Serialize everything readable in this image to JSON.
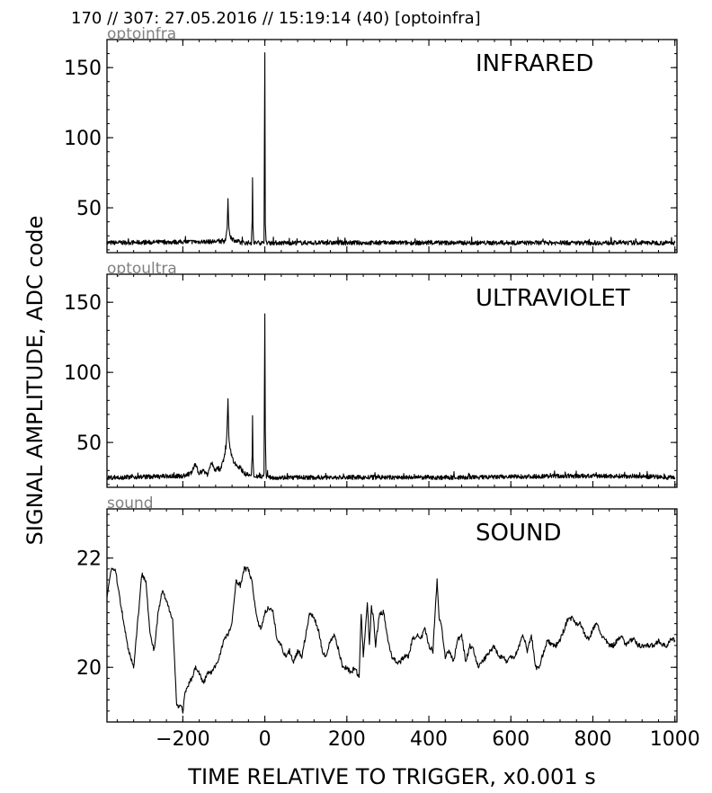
{
  "figure": {
    "header": "170 // 307:   27.05.2016 // 15:19:14 (40)  [optoinfra]",
    "ylabel": "SIGNAL AMPLITUDE,  ADC code",
    "xlabel": "TIME RELATIVE TO TRIGGER,   x0.001 s"
  },
  "chart_data": [
    {
      "type": "line",
      "subplot_label": "optoinfra",
      "title": "INFRARED",
      "xlim": [
        -385,
        1005
      ],
      "ylim": [
        18,
        170
      ],
      "yticks": [
        50,
        100,
        150
      ],
      "xticks": [
        -200,
        0,
        200,
        400,
        600,
        800,
        1000
      ],
      "show_xtick_labels": false,
      "baseline": 25,
      "series": [
        {
          "x": [
            -385,
            -100,
            -95,
            -92,
            -90,
            -88,
            -85,
            -80,
            -75,
            -70,
            -65,
            -60,
            -55,
            -50,
            -40,
            -33,
            -31,
            -30,
            -29,
            -27,
            -20,
            -5,
            -2,
            0,
            1,
            3,
            8,
            20,
            100,
            300,
            500,
            700,
            900,
            1000
          ],
          "y": [
            25,
            26,
            28,
            35,
            55,
            38,
            30,
            28,
            27,
            26,
            26,
            25,
            25,
            25,
            25,
            25,
            40,
            70,
            38,
            25,
            25,
            25,
            26,
            160,
            40,
            25,
            25,
            25,
            25,
            25,
            25,
            25,
            25,
            25
          ]
        }
      ]
    },
    {
      "type": "line",
      "subplot_label": "optoultra",
      "title": "ULTRAVIOLET",
      "xlim": [
        -385,
        1005
      ],
      "ylim": [
        18,
        170
      ],
      "yticks": [
        50,
        100,
        150
      ],
      "xticks": [
        -200,
        0,
        200,
        400,
        600,
        800,
        1000
      ],
      "show_xtick_labels": false,
      "baseline": 25,
      "series": [
        {
          "x": [
            -385,
            -200,
            -180,
            -170,
            -160,
            -150,
            -140,
            -130,
            -120,
            -115,
            -110,
            -105,
            -100,
            -95,
            -92,
            -90,
            -88,
            -85,
            -80,
            -75,
            -70,
            -65,
            -60,
            -55,
            -50,
            -45,
            -40,
            -33,
            -31,
            -30,
            -29,
            -27,
            -20,
            -5,
            -2,
            0,
            1,
            3,
            10,
            100,
            300,
            500,
            700,
            900,
            1000
          ],
          "y": [
            25,
            26,
            28,
            34,
            28,
            30,
            27,
            36,
            29,
            32,
            30,
            34,
            38,
            45,
            60,
            82,
            55,
            45,
            40,
            36,
            34,
            33,
            32,
            30,
            28,
            27,
            27,
            26,
            40,
            68,
            38,
            26,
            26,
            26,
            27,
            142,
            60,
            26,
            25,
            25,
            25,
            25,
            26,
            26,
            25
          ]
        }
      ]
    },
    {
      "type": "line",
      "subplot_label": "sound",
      "title": "SOUND",
      "xlim": [
        -385,
        1005
      ],
      "ylim": [
        19.0,
        22.9
      ],
      "yticks": [
        20,
        22
      ],
      "xticks": [
        -200,
        0,
        200,
        400,
        600,
        800,
        1000
      ],
      "xticklabels": [
        "−200",
        "0",
        "200",
        "400",
        "600",
        "800",
        "1000"
      ],
      "show_xtick_labels": true,
      "series": [
        {
          "x": [
            -385,
            -375,
            -365,
            -350,
            -335,
            -320,
            -300,
            -290,
            -280,
            -270,
            -260,
            -250,
            -240,
            -225,
            -215,
            -205,
            -200,
            -195,
            -185,
            -178,
            -170,
            -160,
            -150,
            -140,
            -130,
            -115,
            -100,
            -90,
            -80,
            -70,
            -60,
            -50,
            -40,
            -30,
            -20,
            -10,
            0,
            10,
            20,
            30,
            40,
            50,
            60,
            70,
            80,
            90,
            100,
            110,
            120,
            130,
            140,
            150,
            160,
            170,
            180,
            190,
            200,
            210,
            220,
            230,
            235,
            240,
            245,
            250,
            255,
            260,
            265,
            270,
            280,
            290,
            300,
            310,
            320,
            330,
            340,
            350,
            360,
            370,
            380,
            390,
            400,
            410,
            415,
            420,
            425,
            430,
            440,
            450,
            460,
            470,
            480,
            490,
            500,
            510,
            520,
            530,
            540,
            550,
            560,
            570,
            580,
            590,
            600,
            610,
            620,
            630,
            640,
            650,
            660,
            670,
            680,
            690,
            700,
            710,
            720,
            730,
            740,
            750,
            760,
            770,
            780,
            790,
            800,
            810,
            820,
            830,
            840,
            850,
            860,
            870,
            880,
            890,
            900,
            910,
            920,
            930,
            940,
            950,
            960,
            970,
            980,
            990,
            1000
          ],
          "y": [
            21.3,
            21.8,
            21.8,
            21.1,
            20.4,
            20.0,
            21.7,
            21.6,
            20.6,
            20.3,
            21.0,
            21.4,
            21.2,
            20.9,
            19.3,
            19.3,
            19.2,
            19.5,
            19.7,
            19.8,
            20.0,
            19.9,
            19.7,
            19.9,
            19.9,
            20.1,
            20.5,
            20.6,
            20.8,
            21.6,
            21.5,
            21.8,
            21.8,
            21.5,
            20.9,
            20.7,
            21.0,
            21.1,
            21.0,
            20.5,
            20.4,
            20.2,
            20.3,
            20.1,
            20.3,
            20.2,
            20.6,
            21.0,
            20.9,
            20.7,
            20.3,
            20.2,
            20.5,
            20.6,
            20.3,
            20.0,
            20.0,
            19.9,
            20.0,
            19.8,
            21.0,
            20.2,
            20.7,
            21.2,
            20.4,
            21.1,
            20.9,
            20.4,
            21.0,
            21.0,
            20.5,
            20.2,
            20.1,
            20.1,
            20.2,
            20.2,
            20.5,
            20.6,
            20.5,
            20.7,
            20.4,
            20.3,
            21.0,
            21.6,
            20.9,
            20.8,
            20.2,
            20.3,
            20.1,
            20.5,
            20.6,
            20.1,
            20.4,
            20.3,
            20.0,
            20.1,
            20.2,
            20.3,
            20.4,
            20.2,
            20.2,
            20.1,
            20.2,
            20.2,
            20.4,
            20.6,
            20.3,
            20.6,
            20.0,
            20.0,
            20.3,
            20.5,
            20.4,
            20.4,
            20.5,
            20.7,
            20.9,
            20.9,
            20.8,
            20.8,
            20.6,
            20.5,
            20.7,
            20.8,
            20.6,
            20.5,
            20.4,
            20.4,
            20.5,
            20.6,
            20.4,
            20.5,
            20.5,
            20.4,
            20.4,
            20.4,
            20.4,
            20.4,
            20.5,
            20.4,
            20.4,
            20.5,
            20.5
          ]
        }
      ]
    }
  ]
}
